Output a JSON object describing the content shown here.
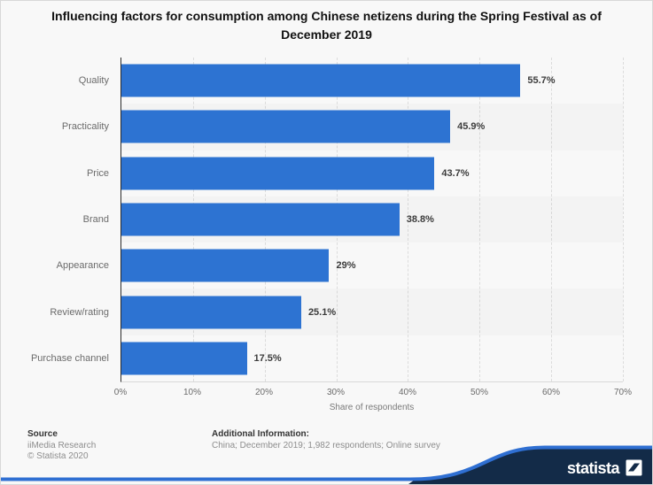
{
  "title": "Influencing factors for consumption among Chinese netizens during the Spring Festival as of December 2019",
  "chart_data": {
    "type": "bar",
    "orientation": "horizontal",
    "categories": [
      "Quality",
      "Practicality",
      "Price",
      "Brand",
      "Appearance",
      "Review/rating",
      "Purchase channel"
    ],
    "values": [
      55.7,
      45.9,
      43.7,
      38.8,
      29,
      25.1,
      17.5
    ],
    "value_labels": [
      "55.7%",
      "45.9%",
      "43.7%",
      "38.8%",
      "29%",
      "25.1%",
      "17.5%"
    ],
    "xlabel": "Share of respondents",
    "xlim": [
      0,
      70
    ],
    "xticks": [
      "0%",
      "10%",
      "20%",
      "30%",
      "40%",
      "50%",
      "60%",
      "70%"
    ],
    "grid": "vertical-dashed",
    "legend": "none",
    "bar_color": "#2d73d2"
  },
  "footer": {
    "source_heading": "Source",
    "source_lines": [
      "iiMedia Research",
      "© Statista 2020"
    ],
    "additional_heading": "Additional Information:",
    "additional_text": "China; December 2019; 1,982 respondents; Online survey"
  },
  "branding": {
    "logo_text": "statista",
    "navy": "#132b48",
    "accent_blue": "#2f6fd2"
  }
}
